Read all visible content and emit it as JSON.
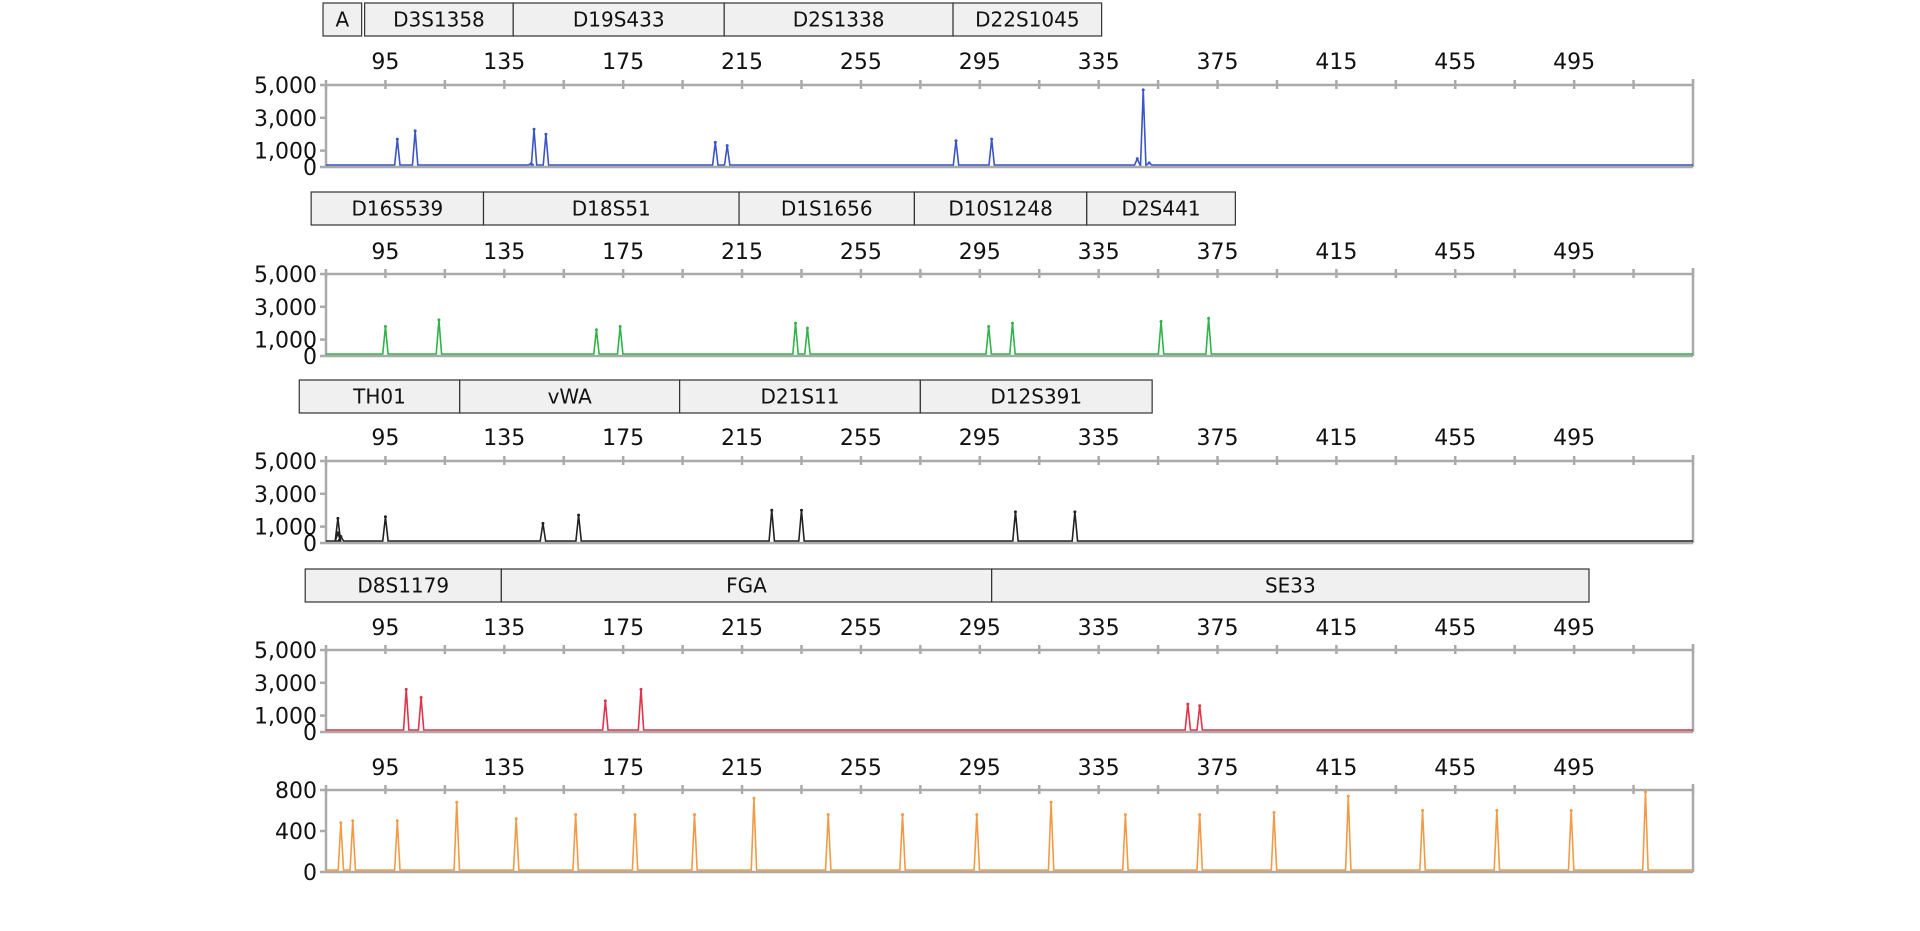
{
  "x_axis": {
    "range": [
      75,
      535
    ],
    "ticks": [
      95,
      135,
      175,
      215,
      255,
      295,
      335,
      375,
      415,
      455,
      495
    ]
  },
  "chart_data": [
    {
      "type": "line",
      "color": "#3b55c4",
      "ylim": [
        0,
        5000
      ],
      "yticks": [
        0,
        1000,
        3000,
        5000
      ],
      "ytick_labels": [
        "0",
        "1,000",
        "3,000",
        "5,000"
      ],
      "markers": [
        {
          "label": "A",
          "start": 74,
          "end": 87
        },
        {
          "label": "D3S1358",
          "start": 88,
          "end": 138
        },
        {
          "label": "D19S433",
          "start": 138,
          "end": 209
        },
        {
          "label": "D2S1338",
          "start": 209,
          "end": 286
        },
        {
          "label": "D22S1045",
          "start": 286,
          "end": 336
        }
      ],
      "peaks": [
        {
          "x": 99,
          "y": 1700
        },
        {
          "x": 105,
          "y": 2200
        },
        {
          "x": 145,
          "y": 2300
        },
        {
          "x": 149,
          "y": 2000
        },
        {
          "x": 144,
          "y": 200
        },
        {
          "x": 206,
          "y": 1500
        },
        {
          "x": 210,
          "y": 1300
        },
        {
          "x": 287,
          "y": 1600
        },
        {
          "x": 299,
          "y": 1700
        },
        {
          "x": 350,
          "y": 4700
        },
        {
          "x": 348,
          "y": 500
        },
        {
          "x": 352,
          "y": 250
        }
      ]
    },
    {
      "type": "line",
      "color": "#2fb34a",
      "ylim": [
        0,
        5000
      ],
      "yticks": [
        0,
        1000,
        3000,
        5000
      ],
      "ytick_labels": [
        "0",
        "1,000",
        "3,000",
        "5,000"
      ],
      "markers": [
        {
          "label": "D16S539",
          "start": 70,
          "end": 128
        },
        {
          "label": "D18S51",
          "start": 128,
          "end": 214
        },
        {
          "label": "D1S1656",
          "start": 214,
          "end": 273
        },
        {
          "label": "D10S1248",
          "start": 273,
          "end": 331
        },
        {
          "label": "D2S441",
          "start": 331,
          "end": 381
        }
      ],
      "peaks": [
        {
          "x": 95,
          "y": 1800
        },
        {
          "x": 113,
          "y": 2200
        },
        {
          "x": 166,
          "y": 1600
        },
        {
          "x": 174,
          "y": 1800
        },
        {
          "x": 233,
          "y": 2000
        },
        {
          "x": 237,
          "y": 1700
        },
        {
          "x": 298,
          "y": 1800
        },
        {
          "x": 306,
          "y": 2000
        },
        {
          "x": 356,
          "y": 2100
        },
        {
          "x": 372,
          "y": 2300
        }
      ]
    },
    {
      "type": "line",
      "color": "#222222",
      "ylim": [
        0,
        5000
      ],
      "yticks": [
        0,
        1000,
        3000,
        5000
      ],
      "ytick_labels": [
        "0",
        "1,000",
        "3,000",
        "5,000"
      ],
      "markers": [
        {
          "label": "TH01",
          "start": 66,
          "end": 120
        },
        {
          "label": "vWA",
          "start": 120,
          "end": 194
        },
        {
          "label": "D21S11",
          "start": 194,
          "end": 275
        },
        {
          "label": "D12S391",
          "start": 275,
          "end": 353
        }
      ],
      "peaks": [
        {
          "x": 80,
          "y": 400
        },
        {
          "x": 79,
          "y": 600
        },
        {
          "x": 79,
          "y": 1500
        },
        {
          "x": 95,
          "y": 1600
        },
        {
          "x": 148,
          "y": 1200
        },
        {
          "x": 160,
          "y": 1700
        },
        {
          "x": 225,
          "y": 2000
        },
        {
          "x": 235,
          "y": 2000
        },
        {
          "x": 307,
          "y": 1900
        },
        {
          "x": 327,
          "y": 1900
        }
      ]
    },
    {
      "type": "line",
      "color": "#e0344a",
      "ylim": [
        0,
        5000
      ],
      "yticks": [
        0,
        1000,
        3000,
        5000
      ],
      "ytick_labels": [
        "0",
        "1,000",
        "3,000",
        "5,000"
      ],
      "markers": [
        {
          "label": "D8S1179",
          "start": 68,
          "end": 134
        },
        {
          "label": "FGA",
          "start": 134,
          "end": 299
        },
        {
          "label": "SE33",
          "start": 299,
          "end": 500
        }
      ],
      "peaks": [
        {
          "x": 102,
          "y": 2600
        },
        {
          "x": 107,
          "y": 2100
        },
        {
          "x": 169,
          "y": 1900
        },
        {
          "x": 181,
          "y": 2600
        },
        {
          "x": 365,
          "y": 1700
        },
        {
          "x": 369,
          "y": 1600
        }
      ]
    },
    {
      "type": "line",
      "color": "#f29a45",
      "ylim": [
        0,
        800
      ],
      "yticks": [
        0,
        400,
        800
      ],
      "ytick_labels": [
        "0",
        "400",
        "800"
      ],
      "markers": [],
      "peaks": [
        {
          "x": 80,
          "y": 480
        },
        {
          "x": 84,
          "y": 500
        },
        {
          "x": 99,
          "y": 500
        },
        {
          "x": 119,
          "y": 680
        },
        {
          "x": 139,
          "y": 520
        },
        {
          "x": 159,
          "y": 560
        },
        {
          "x": 179,
          "y": 560
        },
        {
          "x": 199,
          "y": 560
        },
        {
          "x": 219,
          "y": 720
        },
        {
          "x": 244,
          "y": 560
        },
        {
          "x": 269,
          "y": 560
        },
        {
          "x": 294,
          "y": 560
        },
        {
          "x": 319,
          "y": 680
        },
        {
          "x": 344,
          "y": 560
        },
        {
          "x": 369,
          "y": 560
        },
        {
          "x": 394,
          "y": 580
        },
        {
          "x": 419,
          "y": 740
        },
        {
          "x": 444,
          "y": 600
        },
        {
          "x": 469,
          "y": 600
        },
        {
          "x": 494,
          "y": 600
        },
        {
          "x": 519,
          "y": 780
        }
      ]
    }
  ]
}
